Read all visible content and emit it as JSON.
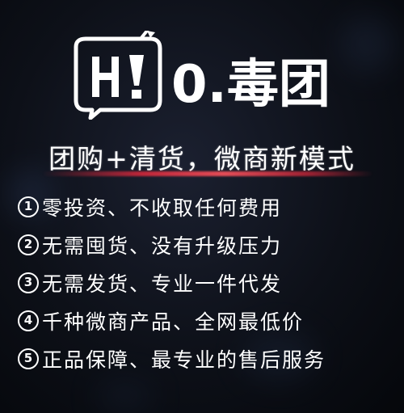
{
  "logo": {
    "text": "0.毒团",
    "icon": "hi-bubble-icon"
  },
  "slogan": "团购+清货，微商新模式",
  "features": [
    {
      "number": "1",
      "text": "零投资、不收取任何费用"
    },
    {
      "number": "2",
      "text": "无需囤货、没有升级压力"
    },
    {
      "number": "3",
      "text": "无需发货、专业一件代发"
    },
    {
      "number": "4",
      "text": "千种微商产品、全网最低价"
    },
    {
      "number": "5",
      "text": "正品保障、最专业的售后服务"
    }
  ],
  "colors": {
    "background": "#0d1018",
    "text": "#ffffff",
    "accent_underline": "#dc283c"
  }
}
